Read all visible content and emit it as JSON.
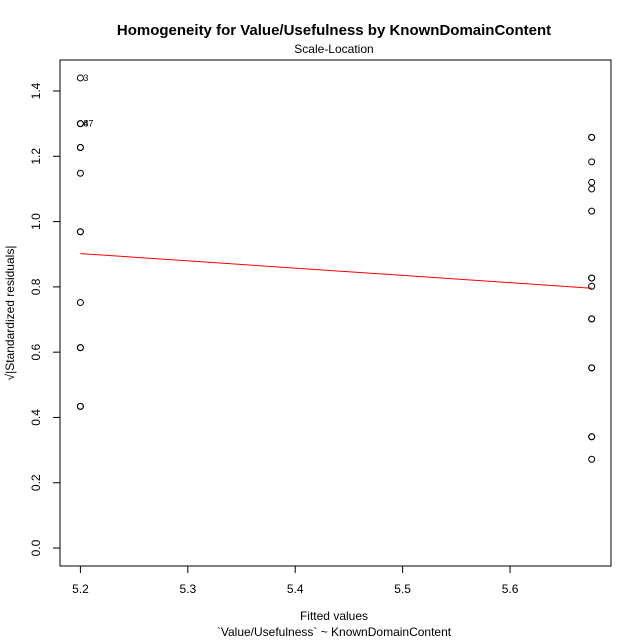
{
  "chart_data": {
    "type": "scatter",
    "title": "Homogeneity for Value/Usefulness by KnownDomainContent",
    "subtitle": "Scale-Location",
    "xlabel": "Fitted values",
    "xlabel2": "`Value/Usefulness` ~ KnownDomainContent",
    "ylabel": "√|Standardized residuals|",
    "xlim": [
      5.181,
      5.694
    ],
    "ylim": [
      -0.055,
      1.495
    ],
    "xticks": [
      5.2,
      5.3,
      5.4,
      5.5,
      5.6
    ],
    "xtick_labels": [
      "5.2",
      "5.3",
      "5.4",
      "5.5",
      "5.6"
    ],
    "yticks": [
      0.0,
      0.2,
      0.4,
      0.6,
      0.8,
      1.0,
      1.2,
      1.4
    ],
    "ytick_labels": [
      "0.0",
      "0.2",
      "0.4",
      "0.6",
      "0.8",
      "1.0",
      "1.2",
      "1.4"
    ],
    "grid": false,
    "points": [
      {
        "x": 5.2,
        "y": 1.44,
        "label": "3"
      },
      {
        "x": 5.2,
        "y": 1.3,
        "label": "47"
      },
      {
        "x": 5.2,
        "y": 1.3,
        "label": "8"
      },
      {
        "x": 5.2,
        "y": 1.227
      },
      {
        "x": 5.2,
        "y": 1.227
      },
      {
        "x": 5.2,
        "y": 1.148
      },
      {
        "x": 5.2,
        "y": 0.969
      },
      {
        "x": 5.2,
        "y": 0.969
      },
      {
        "x": 5.2,
        "y": 0.752
      },
      {
        "x": 5.2,
        "y": 0.614
      },
      {
        "x": 5.2,
        "y": 0.614
      },
      {
        "x": 5.2,
        "y": 0.434
      },
      {
        "x": 5.2,
        "y": 0.434
      },
      {
        "x": 5.676,
        "y": 1.258
      },
      {
        "x": 5.676,
        "y": 1.258
      },
      {
        "x": 5.676,
        "y": 1.183
      },
      {
        "x": 5.676,
        "y": 1.12
      },
      {
        "x": 5.676,
        "y": 1.1
      },
      {
        "x": 5.676,
        "y": 1.032
      },
      {
        "x": 5.676,
        "y": 0.827
      },
      {
        "x": 5.676,
        "y": 0.827
      },
      {
        "x": 5.676,
        "y": 0.802
      },
      {
        "x": 5.676,
        "y": 0.702
      },
      {
        "x": 5.676,
        "y": 0.702
      },
      {
        "x": 5.676,
        "y": 0.552
      },
      {
        "x": 5.676,
        "y": 0.552
      },
      {
        "x": 5.676,
        "y": 0.341
      },
      {
        "x": 5.676,
        "y": 0.341
      },
      {
        "x": 5.676,
        "y": 0.272
      }
    ],
    "smooth_line": {
      "color": "#ff0000",
      "x": [
        5.2,
        5.676
      ],
      "y": [
        0.902,
        0.796
      ]
    },
    "point_color": "#000000"
  }
}
